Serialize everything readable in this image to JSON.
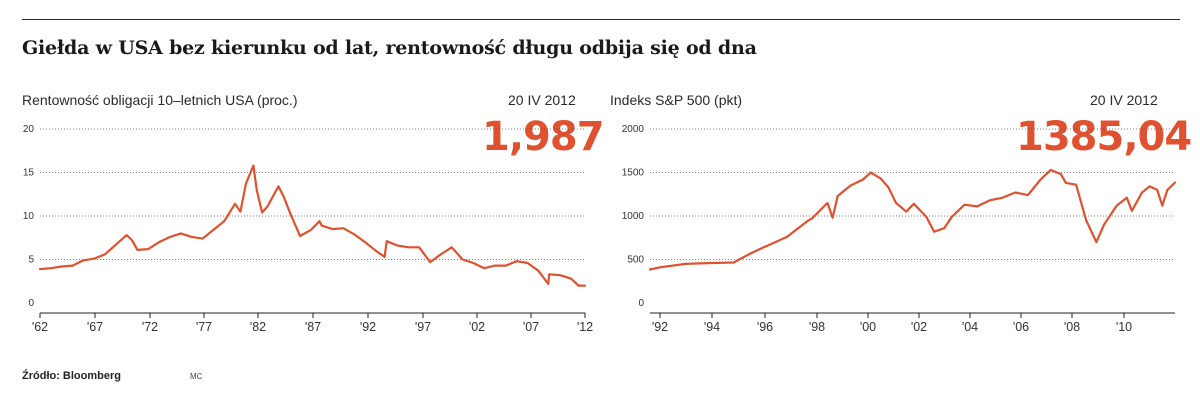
{
  "headline": "Giełda w USA bez kierunku od lat, rentowność długu odbija się od dna",
  "source": "Źródło: Bloomberg",
  "credit": "MC",
  "colors": {
    "line": "#e0512f",
    "accent": "#e0512f",
    "grid": "#555555",
    "text": "#333333"
  },
  "chart_data": [
    {
      "type": "line",
      "title": "Rentowność obligacji 10–letnich USA (proc.)",
      "date": "20 IV 2012",
      "highlight": "1,987",
      "ylim": [
        0,
        20
      ],
      "y_ticks": [
        "0",
        "5",
        "10",
        "15",
        "20"
      ],
      "x_ticks": [
        "'62",
        "'67",
        "'72",
        "'77",
        "'82",
        "'87",
        "'92",
        "'97",
        "'02",
        "'07",
        "'12"
      ],
      "xlim": [
        1962,
        2012.3
      ],
      "series": [
        {
          "x": [
            1962,
            1963,
            1964,
            1965,
            1966,
            1967,
            1968,
            1969,
            1970,
            1970.5,
            1971,
            1972,
            1973,
            1974,
            1975,
            1976,
            1977,
            1978,
            1979,
            1980,
            1980.5,
            1981,
            1981.7,
            1982,
            1982.5,
            1983,
            1984,
            1984.5,
            1985,
            1986,
            1987,
            1987.8,
            1988,
            1989,
            1990,
            1991,
            1992,
            1993,
            1993.8,
            1994,
            1995,
            1996,
            1997,
            1998,
            1999,
            2000,
            2001,
            2002,
            2003,
            2004,
            2005,
            2006,
            2007,
            2008,
            2008.9,
            2009,
            2010,
            2011,
            2011.7,
            2012,
            2012.3
          ],
          "y": [
            3.9,
            4.0,
            4.2,
            4.3,
            4.9,
            5.1,
            5.6,
            6.7,
            7.8,
            7.2,
            6.1,
            6.2,
            7.0,
            7.6,
            8.0,
            7.6,
            7.4,
            8.4,
            9.4,
            11.4,
            10.5,
            13.7,
            15.8,
            13.0,
            10.4,
            11.1,
            13.4,
            12.2,
            10.6,
            7.7,
            8.4,
            9.4,
            8.9,
            8.5,
            8.6,
            7.9,
            7.0,
            6.0,
            5.3,
            7.1,
            6.6,
            6.4,
            6.4,
            4.7,
            5.6,
            6.4,
            5.0,
            4.6,
            4.0,
            4.3,
            4.3,
            4.8,
            4.6,
            3.7,
            2.2,
            3.3,
            3.2,
            2.8,
            2.0,
            2.0,
            1.987
          ]
        }
      ]
    },
    {
      "type": "line",
      "title": "Indeks S&P 500 (pkt)",
      "date": "20 IV 2012",
      "highlight": "1385,04",
      "ylim": [
        0,
        2000
      ],
      "y_ticks": [
        "0",
        "500",
        "1000",
        "1500",
        "2000"
      ],
      "x_ticks": [
        "'92",
        "'94",
        "'96",
        "'98",
        "'00",
        "'02",
        "'04",
        "'06",
        "'08",
        "'10"
      ],
      "xlim": [
        1991.6,
        2012.3
      ],
      "series": [
        {
          "x": [
            1991.6,
            1992,
            1993,
            1994,
            1994.9,
            1995.5,
            1996,
            1997,
            1997.8,
            1998,
            1998.6,
            1998.8,
            1999,
            1999.5,
            2000,
            2000.3,
            2000.7,
            2001,
            2001.3,
            2001.7,
            2002,
            2002.5,
            2002.8,
            2003.2,
            2003.5,
            2004,
            2004.5,
            2005,
            2005.5,
            2006,
            2006.5,
            2007,
            2007.4,
            2007.8,
            2008,
            2008.4,
            2008.8,
            2009.2,
            2009.5,
            2010,
            2010.4,
            2010.6,
            2011,
            2011.3,
            2011.6,
            2011.8,
            2012,
            2012.3
          ],
          "y": [
            385,
            410,
            450,
            460,
            465,
            560,
            630,
            760,
            940,
            975,
            1150,
            980,
            1230,
            1350,
            1420,
            1500,
            1430,
            1330,
            1150,
            1050,
            1140,
            990,
            820,
            860,
            990,
            1130,
            1110,
            1180,
            1210,
            1270,
            1240,
            1420,
            1530,
            1480,
            1380,
            1360,
            950,
            700,
            900,
            1120,
            1210,
            1060,
            1270,
            1340,
            1300,
            1120,
            1300,
            1385
          ]
        }
      ]
    }
  ]
}
